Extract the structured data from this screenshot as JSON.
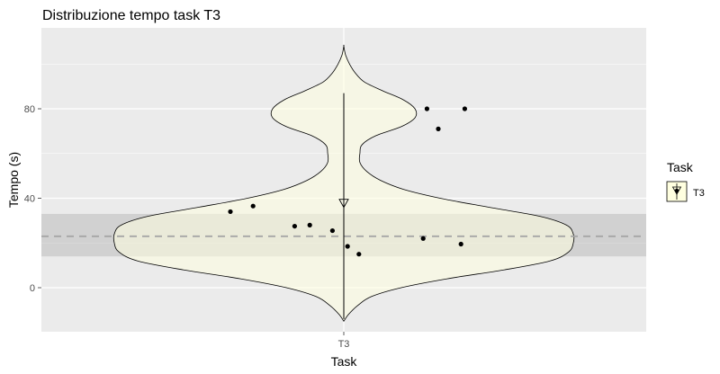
{
  "chart_data": {
    "type": "violin",
    "title": "Distribuzione tempo task T3",
    "xlabel": "Task",
    "ylabel": "Tempo (s)",
    "categories": [
      "T3"
    ],
    "y_ticks": [
      0,
      40,
      80
    ],
    "ylim": [
      -20,
      115
    ],
    "grid": true,
    "legend": {
      "title": "Task",
      "items": [
        "T3"
      ],
      "position": "right"
    },
    "colors": {
      "panel": "#ebebeb",
      "grid": "#ffffff",
      "violin_fill": "#ffffe0",
      "violin_outline": "#000000",
      "band": "#a0a0a0",
      "reference_line": "#a6a6a6",
      "points": "#000000"
    },
    "violin_profile": [
      [
        -15,
        0.0
      ],
      [
        -12,
        0.02
      ],
      [
        -8,
        0.06
      ],
      [
        -4,
        0.12
      ],
      [
        0,
        0.25
      ],
      [
        4,
        0.45
      ],
      [
        8,
        0.7
      ],
      [
        12,
        0.9
      ],
      [
        16,
        0.98
      ],
      [
        20,
        1.0
      ],
      [
        24,
        1.0
      ],
      [
        28,
        0.97
      ],
      [
        32,
        0.85
      ],
      [
        36,
        0.63
      ],
      [
        40,
        0.42
      ],
      [
        44,
        0.26
      ],
      [
        48,
        0.16
      ],
      [
        52,
        0.1
      ],
      [
        56,
        0.07
      ],
      [
        60,
        0.07
      ],
      [
        64,
        0.08
      ],
      [
        68,
        0.14
      ],
      [
        72,
        0.25
      ],
      [
        76,
        0.31
      ],
      [
        80,
        0.31
      ],
      [
        84,
        0.26
      ],
      [
        88,
        0.17
      ],
      [
        92,
        0.09
      ],
      [
        96,
        0.05
      ],
      [
        100,
        0.025
      ],
      [
        104,
        0.008
      ],
      [
        108,
        0.0
      ]
    ],
    "spread_line": {
      "min": -14,
      "max": 87
    },
    "mean_marker": {
      "value": 37.5,
      "shape": "open-triangle-down"
    },
    "reference_line": {
      "value": 23,
      "style": "dashed"
    },
    "confidence_band": {
      "low": 14,
      "high": 33
    },
    "points": [
      {
        "x": -0.3,
        "y": 34
      },
      {
        "x": -0.24,
        "y": 36.5
      },
      {
        "x": -0.13,
        "y": 27.5
      },
      {
        "x": -0.09,
        "y": 28
      },
      {
        "x": -0.03,
        "y": 25.5
      },
      {
        "x": 0.01,
        "y": 18.5
      },
      {
        "x": 0.04,
        "y": 15
      },
      {
        "x": 0.21,
        "y": 22
      },
      {
        "x": 0.22,
        "y": 80
      },
      {
        "x": 0.25,
        "y": 71
      },
      {
        "x": 0.31,
        "y": 19.5
      },
      {
        "x": 0.32,
        "y": 80
      }
    ]
  }
}
